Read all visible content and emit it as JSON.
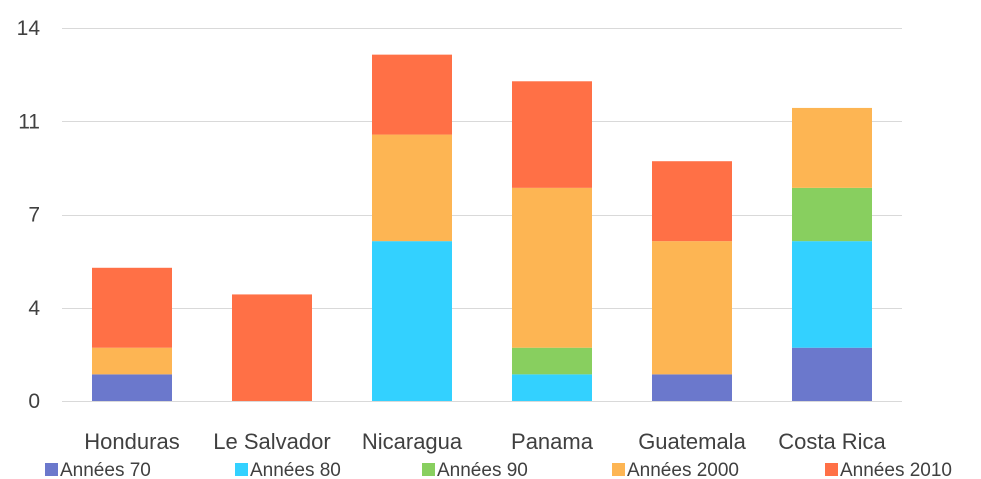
{
  "chart_data": {
    "type": "bar",
    "stacked": true,
    "title": "",
    "xlabel": "",
    "ylabel": "",
    "ylim": [
      0,
      14
    ],
    "y_tick_labels": [
      "0",
      "4",
      "7",
      "11",
      "14"
    ],
    "y_tick_values": [
      0,
      3.5,
      7,
      10.5,
      14
    ],
    "grid": true,
    "legend_position": "bottom",
    "categories": [
      "Honduras",
      "Le Salvador",
      "Nicaragua",
      "Panama",
      "Guatemala",
      "Costa Rica"
    ],
    "series": [
      {
        "name": "Années 70",
        "color": "#6B78CC",
        "values": [
          1,
          0,
          0,
          0,
          1,
          2
        ]
      },
      {
        "name": "Années 80",
        "color": "#33D1FF",
        "values": [
          0,
          0,
          6,
          1,
          0,
          4
        ]
      },
      {
        "name": "Années 90",
        "color": "#88CF5F",
        "values": [
          0,
          0,
          0,
          1,
          0,
          2
        ]
      },
      {
        "name": "Années 2000",
        "color": "#FDB553",
        "values": [
          1,
          0,
          4,
          6,
          5,
          3
        ]
      },
      {
        "name": "Années 2010",
        "color": "#FF7046",
        "values": [
          3,
          4,
          3,
          4,
          3,
          0
        ]
      }
    ]
  }
}
